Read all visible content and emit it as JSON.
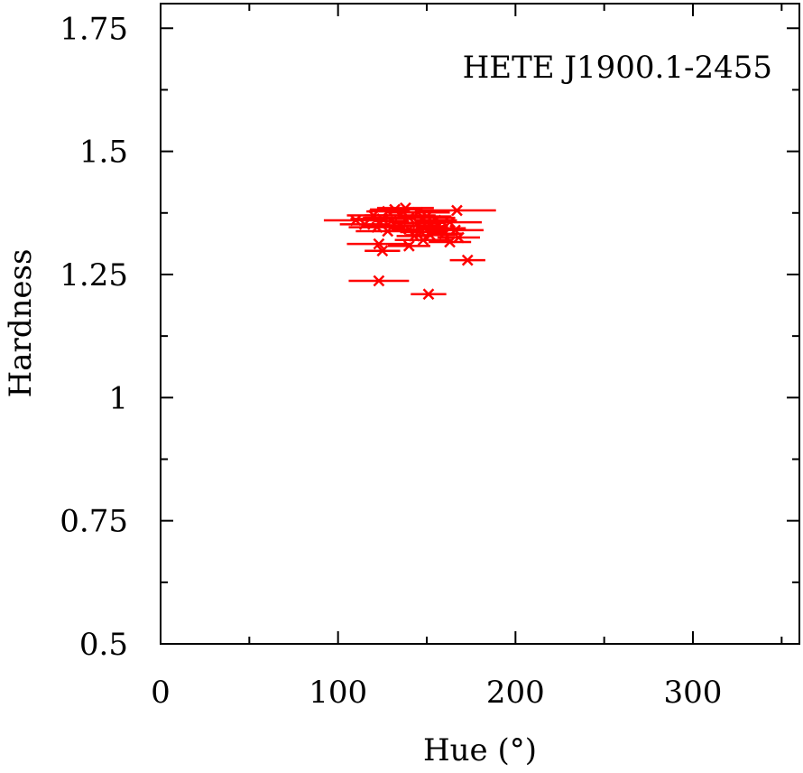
{
  "chart_data": {
    "type": "scatter",
    "title": "",
    "annotation": "HETE J1900.1-2455",
    "xlabel": "Hue (°)",
    "ylabel": "Hardness",
    "xlim": [
      0,
      360
    ],
    "ylim": [
      0.5,
      1.8
    ],
    "xticks": [
      0,
      100,
      200,
      300
    ],
    "xtick_labels": [
      "0",
      "100",
      "200",
      "300"
    ],
    "yticks": [
      0.5,
      0.75,
      1.0,
      1.25,
      1.5,
      1.75
    ],
    "ytick_labels": [
      "0.5",
      "0.75",
      "1",
      "1.25",
      "1.5",
      "1.75"
    ],
    "grid": false,
    "marker_color": "#ff0000",
    "series": [
      {
        "points": [
          {
            "x": 138,
            "y": 1.385,
            "xerr": 16
          },
          {
            "x": 132,
            "y": 1.382,
            "xerr": 14
          },
          {
            "x": 167,
            "y": 1.38,
            "xerr": 22
          },
          {
            "x": 128,
            "y": 1.378,
            "xerr": 12
          },
          {
            "x": 145,
            "y": 1.376,
            "xerr": 18
          },
          {
            "x": 120,
            "y": 1.37,
            "xerr": 15
          },
          {
            "x": 135,
            "y": 1.37,
            "xerr": 20
          },
          {
            "x": 150,
            "y": 1.368,
            "xerr": 14
          },
          {
            "x": 140,
            "y": 1.365,
            "xerr": 26
          },
          {
            "x": 125,
            "y": 1.363,
            "xerr": 18
          },
          {
            "x": 110,
            "y": 1.36,
            "xerr": 18
          },
          {
            "x": 155,
            "y": 1.36,
            "xerr": 12
          },
          {
            "x": 130,
            "y": 1.358,
            "xerr": 10
          },
          {
            "x": 163,
            "y": 1.356,
            "xerr": 18
          },
          {
            "x": 145,
            "y": 1.355,
            "xerr": 15
          },
          {
            "x": 115,
            "y": 1.352,
            "xerr": 14
          },
          {
            "x": 135,
            "y": 1.35,
            "xerr": 22
          },
          {
            "x": 150,
            "y": 1.348,
            "xerr": 12
          },
          {
            "x": 122,
            "y": 1.346,
            "xerr": 16
          },
          {
            "x": 158,
            "y": 1.344,
            "xerr": 14
          },
          {
            "x": 140,
            "y": 1.342,
            "xerr": 10
          },
          {
            "x": 166,
            "y": 1.34,
            "xerr": 16
          },
          {
            "x": 128,
            "y": 1.338,
            "xerr": 18
          },
          {
            "x": 147,
            "y": 1.336,
            "xerr": 12
          },
          {
            "x": 160,
            "y": 1.333,
            "xerr": 10
          },
          {
            "x": 152,
            "y": 1.33,
            "xerr": 14
          },
          {
            "x": 143,
            "y": 1.328,
            "xerr": 10
          },
          {
            "x": 168,
            "y": 1.325,
            "xerr": 12
          },
          {
            "x": 148,
            "y": 1.32,
            "xerr": 16
          },
          {
            "x": 163,
            "y": 1.316,
            "xerr": 12
          },
          {
            "x": 123,
            "y": 1.312,
            "xerr": 18
          },
          {
            "x": 140,
            "y": 1.308,
            "xerr": 12
          },
          {
            "x": 125,
            "y": 1.298,
            "xerr": 10
          },
          {
            "x": 173,
            "y": 1.279,
            "xerr": 10
          },
          {
            "x": 123,
            "y": 1.237,
            "xerr": 17
          },
          {
            "x": 151,
            "y": 1.21,
            "xerr": 10
          }
        ]
      }
    ]
  }
}
